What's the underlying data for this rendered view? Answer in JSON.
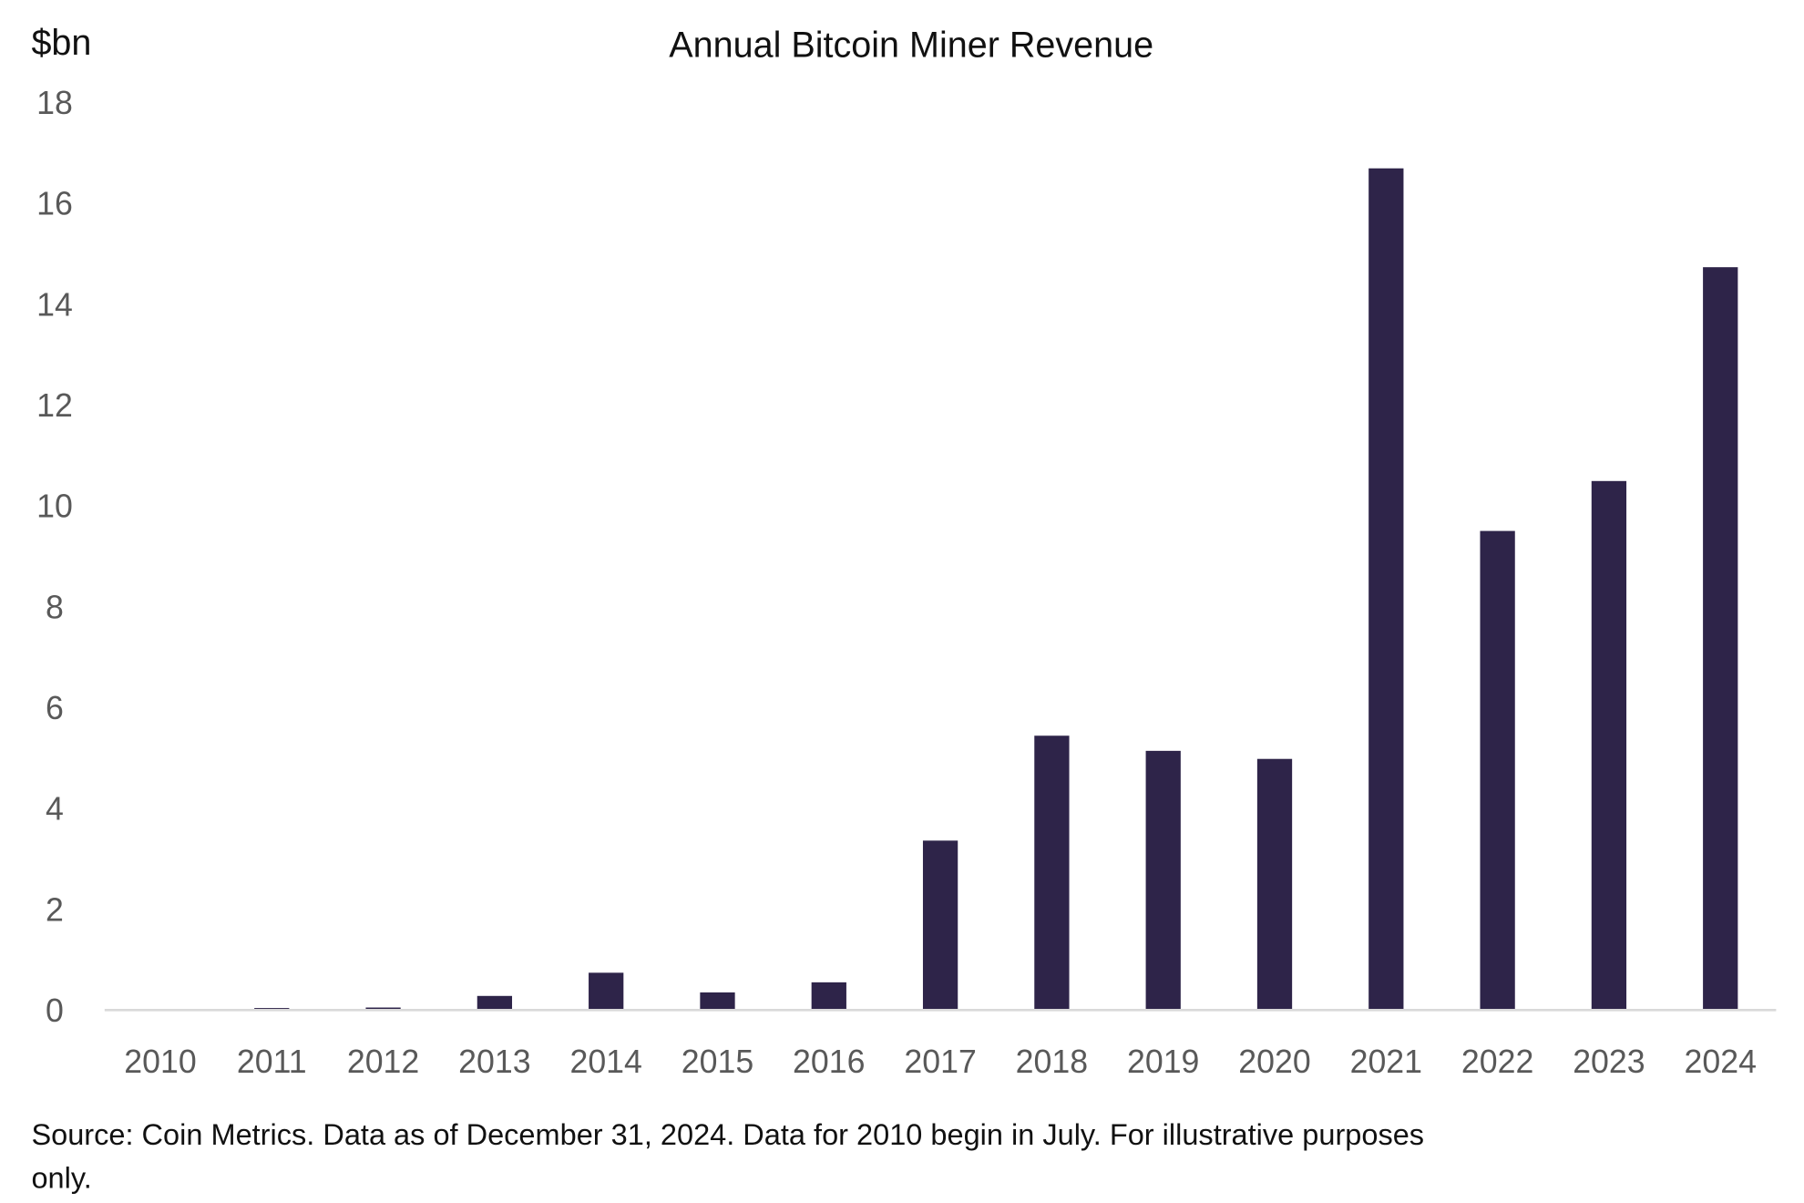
{
  "chart_data": {
    "type": "bar",
    "title": "Annual Bitcoin Miner Revenue",
    "ylabel": "$bn",
    "xlabel": "",
    "ylim": [
      0,
      18
    ],
    "yticks": [
      "0",
      "2",
      "4",
      "6",
      "8",
      "10",
      "12",
      "14",
      "16",
      "18"
    ],
    "categories": [
      "2010",
      "2011",
      "2012",
      "2013",
      "2014",
      "2015",
      "2016",
      "2017",
      "2018",
      "2019",
      "2020",
      "2021",
      "2022",
      "2023",
      "2024"
    ],
    "values": [
      0.0,
      0.04,
      0.05,
      0.28,
      0.74,
      0.35,
      0.55,
      3.36,
      5.44,
      5.14,
      4.98,
      16.69,
      9.5,
      10.49,
      14.73
    ],
    "grid": false,
    "bar_color": "#2e2449",
    "axis_color": "#d9d9d9"
  },
  "footnote": {
    "line1": "Source: Coin Metrics. Data as of December 31, 2024. Data for 2010 begin in July. For illustrative purposes",
    "line2": "only."
  }
}
